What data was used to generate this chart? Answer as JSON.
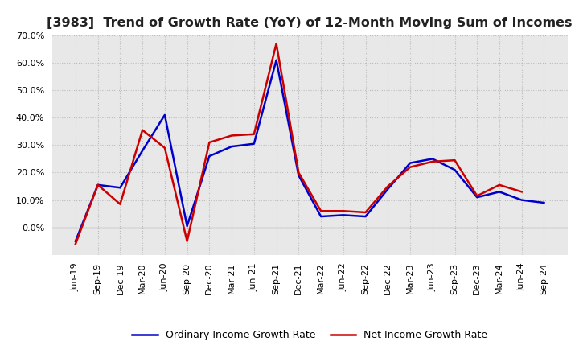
{
  "title": "[3983]  Trend of Growth Rate (YoY) of 12-Month Moving Sum of Incomes",
  "x_labels": [
    "Jun-19",
    "Sep-19",
    "Dec-19",
    "Mar-20",
    "Jun-20",
    "Sep-20",
    "Dec-20",
    "Mar-21",
    "Jun-21",
    "Sep-21",
    "Dec-21",
    "Mar-22",
    "Jun-22",
    "Sep-22",
    "Dec-22",
    "Mar-23",
    "Jun-23",
    "Sep-23",
    "Dec-23",
    "Mar-24",
    "Jun-24",
    "Sep-24"
  ],
  "ordinary_income": [
    -5.0,
    15.5,
    14.5,
    28.0,
    41.0,
    0.5,
    26.0,
    29.5,
    30.5,
    61.0,
    19.0,
    4.0,
    4.5,
    4.0,
    14.0,
    23.5,
    25.0,
    21.0,
    11.0,
    13.0,
    10.0,
    9.0
  ],
  "net_income": [
    -6.0,
    15.5,
    8.5,
    35.5,
    29.0,
    -5.0,
    31.0,
    33.5,
    34.0,
    67.0,
    20.0,
    6.0,
    6.0,
    5.5,
    15.0,
    22.0,
    24.0,
    24.5,
    11.5,
    15.5,
    13.0,
    null
  ],
  "ylim": [
    -10,
    70
  ],
  "yticks": [
    0,
    10,
    20,
    30,
    40,
    50,
    60,
    70
  ],
  "ordinary_color": "#0000CC",
  "net_color": "#CC0000",
  "line_width": 1.8,
  "background_color": "#FFFFFF",
  "plot_bg_color": "#E8E8E8",
  "grid_color": "#BBBBBB",
  "legend_ordinary": "Ordinary Income Growth Rate",
  "legend_net": "Net Income Growth Rate",
  "title_fontsize": 11.5,
  "tick_fontsize": 8,
  "legend_fontsize": 9
}
